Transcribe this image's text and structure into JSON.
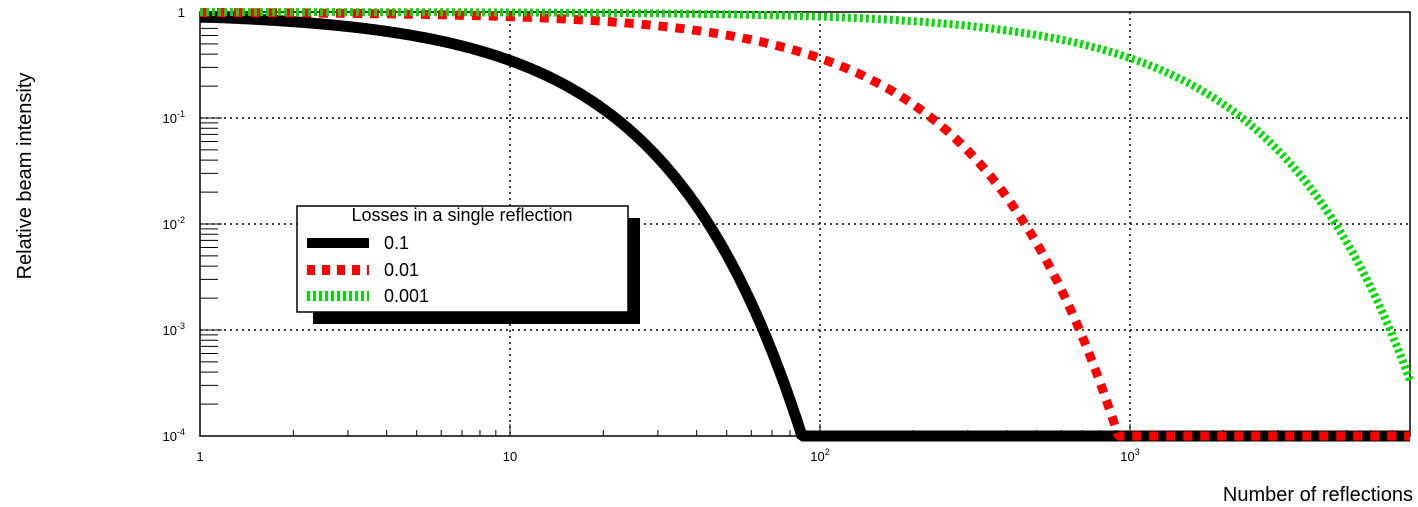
{
  "chart_data": {
    "type": "line",
    "title": "",
    "xlabel": "Number of reflections",
    "ylabel": "Relative beam intensity",
    "xscale": "log",
    "yscale": "log",
    "xlim": [
      1,
      8000
    ],
    "ylim": [
      0.0001,
      1
    ],
    "grid": true,
    "legend_title": "Losses in a single reflection",
    "legend_position": "center-left",
    "x_ticks": [
      {
        "value": 1,
        "base": "1",
        "exp": ""
      },
      {
        "value": 10,
        "base": "10",
        "exp": ""
      },
      {
        "value": 100,
        "base": "10",
        "exp": "2"
      },
      {
        "value": 1000,
        "base": "10",
        "exp": "3"
      }
    ],
    "y_ticks": [
      {
        "value": 1,
        "base": "1",
        "exp": ""
      },
      {
        "value": 0.1,
        "base": "10",
        "exp": "-1"
      },
      {
        "value": 0.01,
        "base": "10",
        "exp": "-2"
      },
      {
        "value": 0.001,
        "base": "10",
        "exp": "-3"
      },
      {
        "value": 0.0001,
        "base": "10",
        "exp": "-4"
      }
    ],
    "series": [
      {
        "name": "0.1",
        "loss": 0.1,
        "color": "#000000",
        "style": "solid"
      },
      {
        "name": "0.01",
        "loss": 0.01,
        "color": "#ff0000",
        "style": "dashed"
      },
      {
        "name": "0.001",
        "loss": 0.001,
        "color": "#00dd00",
        "style": "dotted"
      }
    ]
  }
}
